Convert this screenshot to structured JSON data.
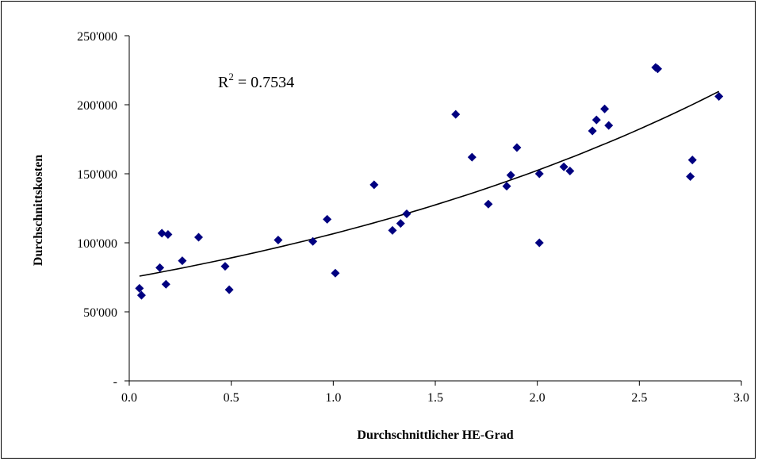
{
  "chart_data": {
    "type": "scatter",
    "title": "",
    "xlabel": "Durchschnittlicher HE-Grad",
    "ylabel": "Durchschnittskosten",
    "xlim": [
      0,
      3
    ],
    "ylim": [
      0,
      250000
    ],
    "x_ticks": [
      0,
      0.5,
      1,
      1.5,
      2,
      2.5,
      3
    ],
    "x_tick_labels": [
      "0.0",
      "0.5",
      "1.0",
      "1.5",
      "2.0",
      "2.5",
      "3.0"
    ],
    "y_ticks": [
      0,
      50000,
      100000,
      150000,
      200000,
      250000
    ],
    "y_tick_labels": [
      "-",
      "50'000",
      "100'000",
      "150'000",
      "200'000",
      "250'000"
    ],
    "grid": false,
    "annotation": {
      "r_label": "R",
      "r_exponent": "2",
      "r_value": " = 0.7534"
    },
    "marker_color": "#000080",
    "trendline_color": "#000000",
    "trendline": {
      "type": "exponential",
      "x_range": [
        0.05,
        2.89
      ],
      "a": 74500,
      "b": 0.358
    },
    "series": [
      {
        "x": [
          0.05,
          0.06,
          0.15,
          0.16,
          0.18,
          0.19,
          0.26,
          0.34,
          0.47,
          0.49,
          0.73,
          0.9,
          0.97,
          1.01,
          1.2,
          1.29,
          1.33,
          1.36,
          1.6,
          1.68,
          1.76,
          1.85,
          1.87,
          1.9,
          2.01,
          2.01,
          2.13,
          2.16,
          2.27,
          2.29,
          2.33,
          2.35,
          2.58,
          2.59,
          2.75,
          2.76,
          2.89
        ],
        "y": [
          67000,
          62000,
          82000,
          107000,
          70000,
          106000,
          87000,
          104000,
          83000,
          66000,
          102000,
          101000,
          117000,
          78000,
          142000,
          109000,
          114000,
          121000,
          193000,
          162000,
          128000,
          141000,
          149000,
          169000,
          100000,
          150000,
          155000,
          152000,
          181000,
          189000,
          197000,
          185000,
          227000,
          226000,
          148000,
          160000,
          206000
        ]
      }
    ]
  }
}
